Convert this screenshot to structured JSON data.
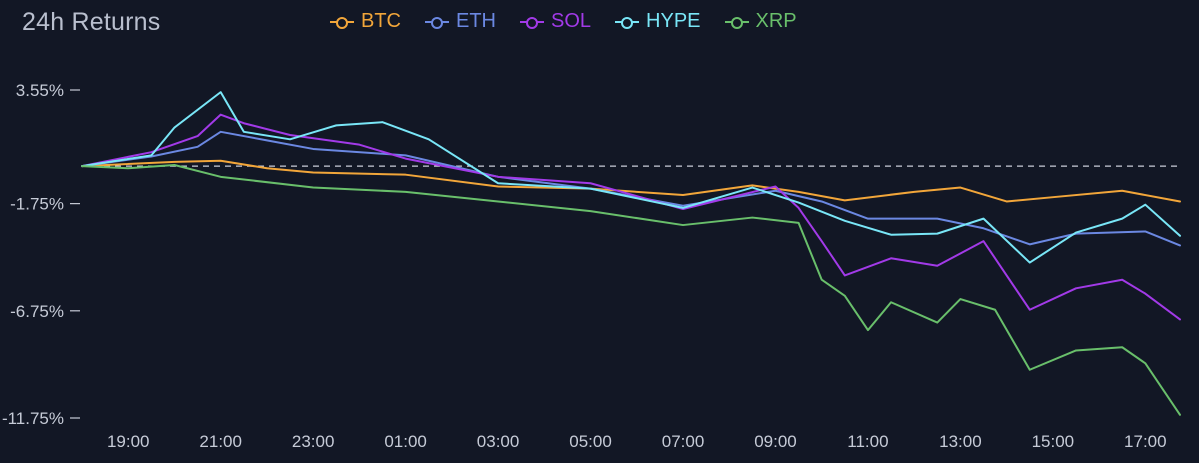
{
  "chart": {
    "title": "24h Returns"
  },
  "chart_data": {
    "type": "line",
    "title": "24h Returns",
    "xlabel": "",
    "ylabel": "",
    "x_ticks": [
      "19:00",
      "21:00",
      "23:00",
      "01:00",
      "03:00",
      "05:00",
      "07:00",
      "09:00",
      "11:00",
      "13:00",
      "15:00",
      "17:00"
    ],
    "y_ticks": [
      3.55,
      -1.75,
      -6.75,
      -11.75
    ],
    "y_tick_labels": [
      "3.55%",
      "-1.75%",
      "-6.75%",
      "-11.75%"
    ],
    "ylim": [
      -11.75,
      3.55
    ],
    "xlim": [
      "18:00",
      "17:45"
    ],
    "legend_position": "top",
    "grid": "baseline dashed at 0%",
    "series": [
      {
        "name": "BTC",
        "color": "#f2a63a",
        "points": [
          [
            "18:00",
            0.0
          ],
          [
            "20:00",
            0.2
          ],
          [
            "21:00",
            0.25
          ],
          [
            "22:00",
            -0.1
          ],
          [
            "23:00",
            -0.3
          ],
          [
            "01:00",
            -0.4
          ],
          [
            "03:00",
            -0.95
          ],
          [
            "05:00",
            -1.05
          ],
          [
            "07:00",
            -1.35
          ],
          [
            "08:30",
            -0.9
          ],
          [
            "09:30",
            -1.2
          ],
          [
            "10:30",
            -1.6
          ],
          [
            "12:00",
            -1.2
          ],
          [
            "13:00",
            -1.0
          ],
          [
            "14:00",
            -1.65
          ],
          [
            "15:00",
            -1.45
          ],
          [
            "16:30",
            -1.15
          ],
          [
            "17:45",
            -1.65
          ]
        ]
      },
      {
        "name": "ETH",
        "color": "#6b88e2",
        "points": [
          [
            "18:00",
            0.0
          ],
          [
            "19:30",
            0.45
          ],
          [
            "20:30",
            0.9
          ],
          [
            "21:00",
            1.6
          ],
          [
            "22:00",
            1.2
          ],
          [
            "23:00",
            0.8
          ],
          [
            "01:00",
            0.5
          ],
          [
            "03:00",
            -0.5
          ],
          [
            "05:00",
            -1.05
          ],
          [
            "07:00",
            -1.85
          ],
          [
            "09:00",
            -1.15
          ],
          [
            "10:00",
            -1.65
          ],
          [
            "11:00",
            -2.45
          ],
          [
            "12:30",
            -2.45
          ],
          [
            "13:30",
            -2.9
          ],
          [
            "14:30",
            -3.65
          ],
          [
            "15:30",
            -3.15
          ],
          [
            "17:00",
            -3.05
          ],
          [
            "17:45",
            -3.7
          ]
        ]
      },
      {
        "name": "SOL",
        "color": "#a23ae8",
        "points": [
          [
            "18:00",
            0.0
          ],
          [
            "19:30",
            0.65
          ],
          [
            "20:30",
            1.4
          ],
          [
            "21:00",
            2.4
          ],
          [
            "21:30",
            2.0
          ],
          [
            "22:30",
            1.45
          ],
          [
            "00:00",
            1.0
          ],
          [
            "01:00",
            0.35
          ],
          [
            "03:00",
            -0.5
          ],
          [
            "05:00",
            -0.8
          ],
          [
            "07:00",
            -2.0
          ],
          [
            "09:00",
            -0.95
          ],
          [
            "09:30",
            -1.95
          ],
          [
            "10:00",
            -3.5
          ],
          [
            "10:30",
            -5.1
          ],
          [
            "11:30",
            -4.3
          ],
          [
            "12:30",
            -4.65
          ],
          [
            "13:30",
            -3.5
          ],
          [
            "14:30",
            -6.7
          ],
          [
            "15:30",
            -5.7
          ],
          [
            "16:30",
            -5.3
          ],
          [
            "17:00",
            -5.95
          ],
          [
            "17:45",
            -7.15
          ]
        ]
      },
      {
        "name": "HYPE",
        "color": "#79e6f7",
        "points": [
          [
            "18:00",
            0.0
          ],
          [
            "19:30",
            0.5
          ],
          [
            "20:00",
            1.8
          ],
          [
            "21:00",
            3.45
          ],
          [
            "21:30",
            1.6
          ],
          [
            "22:30",
            1.25
          ],
          [
            "23:30",
            1.9
          ],
          [
            "00:30",
            2.05
          ],
          [
            "01:30",
            1.25
          ],
          [
            "03:00",
            -0.8
          ],
          [
            "05:00",
            -1.05
          ],
          [
            "07:00",
            -1.95
          ],
          [
            "08:30",
            -1.0
          ],
          [
            "09:30",
            -1.7
          ],
          [
            "10:30",
            -2.55
          ],
          [
            "11:30",
            -3.2
          ],
          [
            "12:30",
            -3.15
          ],
          [
            "13:30",
            -2.45
          ],
          [
            "14:30",
            -4.5
          ],
          [
            "15:30",
            -3.1
          ],
          [
            "16:30",
            -2.45
          ],
          [
            "17:00",
            -1.8
          ],
          [
            "17:45",
            -3.25
          ]
        ]
      },
      {
        "name": "XRP",
        "color": "#69bf6b",
        "points": [
          [
            "18:00",
            0.0
          ],
          [
            "19:00",
            -0.1
          ],
          [
            "20:00",
            0.05
          ],
          [
            "21:00",
            -0.5
          ],
          [
            "23:00",
            -1.0
          ],
          [
            "01:00",
            -1.2
          ],
          [
            "03:00",
            -1.65
          ],
          [
            "05:00",
            -2.1
          ],
          [
            "07:00",
            -2.75
          ],
          [
            "08:30",
            -2.4
          ],
          [
            "09:30",
            -2.65
          ],
          [
            "10:00",
            -5.3
          ],
          [
            "10:30",
            -6.05
          ],
          [
            "11:00",
            -7.65
          ],
          [
            "11:30",
            -6.35
          ],
          [
            "12:30",
            -7.3
          ],
          [
            "13:00",
            -6.2
          ],
          [
            "13:45",
            -6.7
          ],
          [
            "14:30",
            -9.5
          ],
          [
            "15:30",
            -8.6
          ],
          [
            "16:30",
            -8.45
          ],
          [
            "17:00",
            -9.2
          ],
          [
            "17:45",
            -11.6
          ]
        ]
      }
    ]
  }
}
